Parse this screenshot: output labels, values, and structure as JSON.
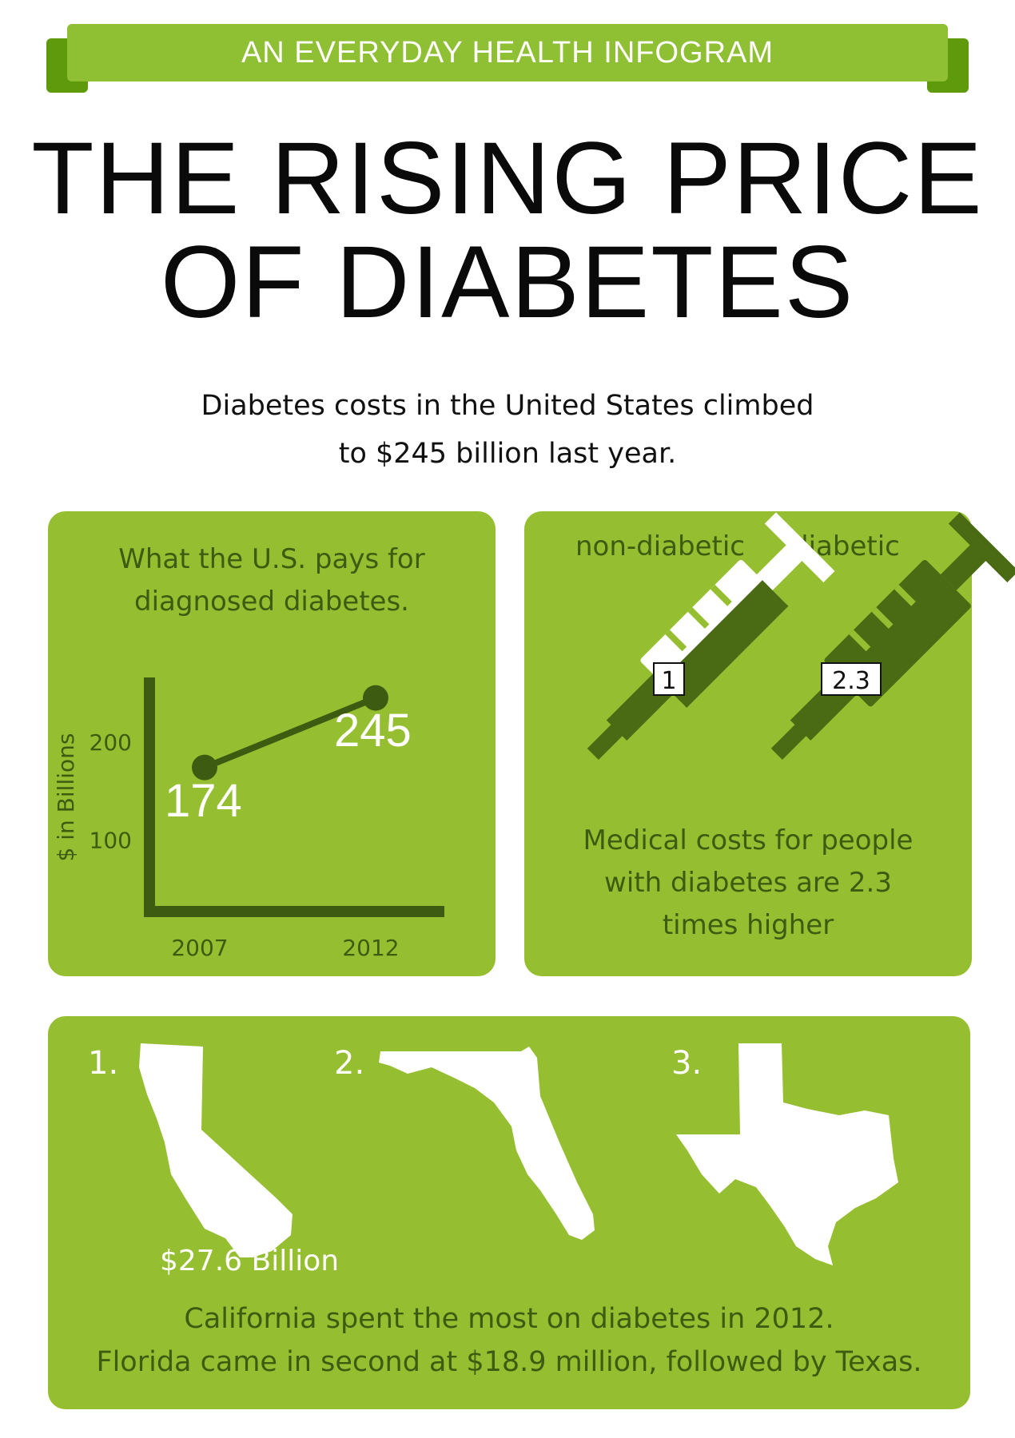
{
  "header": {
    "ribbon_label": "AN EVERYDAY HEALTH INFOGRAM",
    "title_line1": "THE RISING PRICE",
    "title_line2": "OF DIABETES",
    "intro_line1": "Diabetes costs in the United States climbed",
    "intro_line2": "to $245 billion last year."
  },
  "chart_panel": {
    "title_line1": "What the U.S. pays for",
    "title_line2": "diagnosed diabetes."
  },
  "chart_data": [
    {
      "type": "line",
      "title": "What the U.S. pays for diagnosed diabetes.",
      "ylabel": "$ in Billions",
      "xlabel": "",
      "categories": [
        "2007",
        "2012"
      ],
      "values": [
        174,
        245
      ],
      "data_labels": [
        "174",
        "245"
      ],
      "yticks": [
        100,
        200
      ],
      "ytick_labels": [
        "100",
        "200"
      ],
      "ylim": [
        0,
        245
      ],
      "grid": false
    }
  ],
  "syringe_panel": {
    "label_left": "non-diabetic",
    "label_right": "diabetic",
    "value_left": "1",
    "value_right": "2.3",
    "caption_line1": "Medical costs for people",
    "caption_line2": "with diabetes are 2.3",
    "caption_line3": "times higher"
  },
  "states_panel": {
    "rank1": "1.",
    "rank2": "2.",
    "rank3": "3.",
    "state1_amount": "$27.6 Billion",
    "caption_line1": "California spent the most on diabetes in 2012.",
    "caption_line2": "Florida came in second at $18.9 million, followed by Texas."
  },
  "colors": {
    "panel_green": "#95bf30",
    "ribbon_green": "#8fbf33",
    "ribbon_tab_green": "#5e9a0c",
    "dark_green": "#3d5c12",
    "white": "#ffffff"
  },
  "icons": [
    "syringe-icon",
    "california-map-icon",
    "florida-map-icon",
    "texas-map-icon"
  ]
}
